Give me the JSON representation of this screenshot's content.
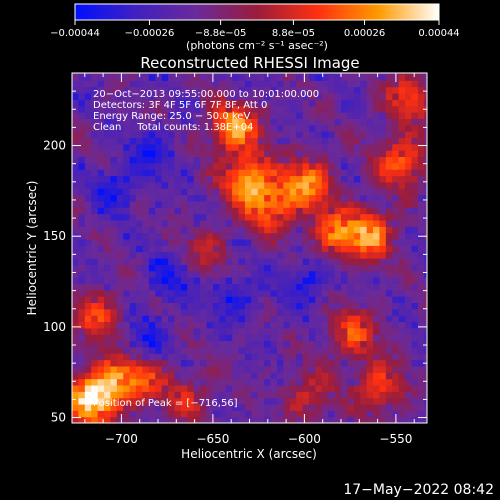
{
  "chart_data": {
    "type": "heatmap",
    "title": "Reconstructed RHESSI Image",
    "xlabel": "Heliocentric X (arcsec)",
    "ylabel": "Heliocentric Y (arcsec)",
    "xlim": [
      -727,
      -533
    ],
    "ylim": [
      47,
      240
    ],
    "xticks": [
      -700,
      -650,
      -600,
      -550
    ],
    "yticks": [
      50,
      100,
      150,
      200
    ],
    "xtick_labels": [
      "−700",
      "−650",
      "−600",
      "−550"
    ],
    "ytick_labels": [
      "50",
      "100",
      "150",
      "200"
    ],
    "colorbar": {
      "ticks": [
        -0.00044,
        -0.00026,
        -8.8e-05,
        8.8e-05,
        0.00026,
        0.00044
      ],
      "tick_labels": [
        "−0.00044",
        "−0.00026",
        "−8.8e−05",
        "8.8e−05",
        "0.00026",
        "0.00044"
      ],
      "unit_text": "(photons cm⁻² s⁻¹ asec⁻²)",
      "range": [
        -0.00044,
        0.00044
      ],
      "colors": [
        "#0010ff",
        "#4020c0",
        "#6a2a9a",
        "#9a1c3c",
        "#ff3010",
        "#ff9a00",
        "#ffffff"
      ]
    },
    "annotations": {
      "time": "20−Oct−2013 09:55:00.000 to 10:01:00.000",
      "detectors": "Detectors: 3F 4F 5F 6F 7F 8F, Att 0",
      "energy": "Energy Range: 25.0 − 50.0 keV",
      "clean": "Clean     Total counts: 1.38E+04",
      "peak": "Position of Peak = [−716,56]"
    },
    "peak": {
      "x": -716,
      "y": 56
    },
    "hot_regions": [
      {
        "x": -718,
        "y": 58,
        "level": 1.0
      },
      {
        "x": -705,
        "y": 70,
        "level": 0.6
      },
      {
        "x": -690,
        "y": 70,
        "level": 0.45
      },
      {
        "x": -715,
        "y": 105,
        "level": 0.55
      },
      {
        "x": -640,
        "y": 208,
        "level": 0.85
      },
      {
        "x": -633,
        "y": 180,
        "level": 0.8
      },
      {
        "x": -620,
        "y": 165,
        "level": 0.7
      },
      {
        "x": -600,
        "y": 178,
        "level": 0.75
      },
      {
        "x": -585,
        "y": 150,
        "level": 0.7
      },
      {
        "x": -565,
        "y": 150,
        "level": 0.75
      },
      {
        "x": -548,
        "y": 190,
        "level": 0.7
      },
      {
        "x": -545,
        "y": 225,
        "level": 0.55
      },
      {
        "x": -575,
        "y": 95,
        "level": 0.6
      },
      {
        "x": -560,
        "y": 65,
        "level": 0.6
      },
      {
        "x": -600,
        "y": 60,
        "level": 0.45
      },
      {
        "x": -665,
        "y": 60,
        "level": 0.4
      },
      {
        "x": -655,
        "y": 140,
        "level": 0.35
      }
    ],
    "cold_regions": [
      {
        "x": -705,
        "y": 175
      },
      {
        "x": -685,
        "y": 195
      },
      {
        "x": -690,
        "y": 90
      },
      {
        "x": -675,
        "y": 125
      },
      {
        "x": -640,
        "y": 115
      },
      {
        "x": -600,
        "y": 125
      }
    ]
  },
  "footer": {
    "timestamp": "17−May−2022 08:42"
  }
}
